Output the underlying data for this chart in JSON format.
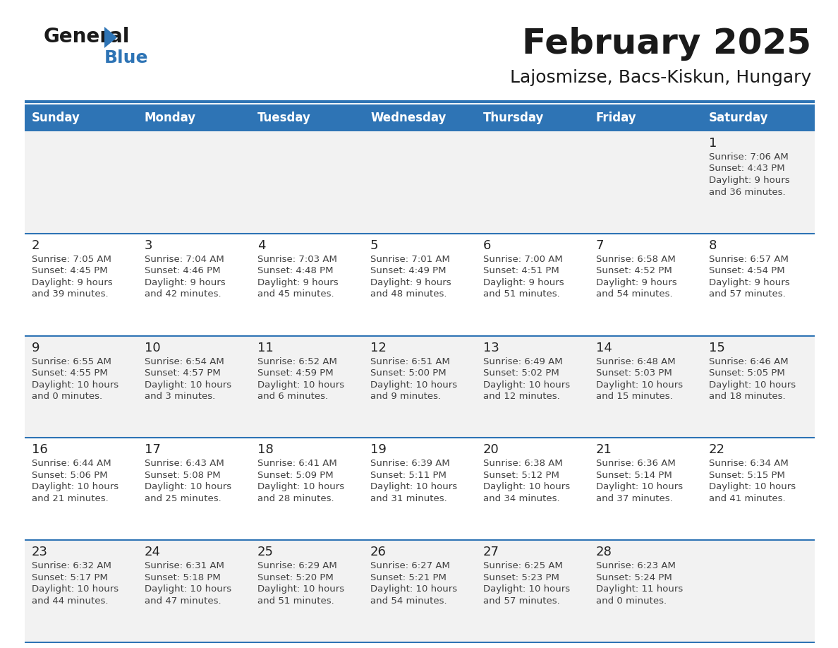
{
  "title": "February 2025",
  "subtitle": "Lajosmizse, Bacs-Kiskun, Hungary",
  "days_of_week": [
    "Sunday",
    "Monday",
    "Tuesday",
    "Wednesday",
    "Thursday",
    "Friday",
    "Saturday"
  ],
  "header_bg": "#2E74B5",
  "header_text_color": "#FFFFFF",
  "cell_bg_odd": "#F2F2F2",
  "cell_bg_even": "#FFFFFF",
  "divider_color": "#2E74B5",
  "text_color": "#404040",
  "day_num_color": "#222222",
  "logo_general_color": "#1a1a1a",
  "logo_blue_color": "#2E74B5",
  "logo_triangle_color": "#2E74B5",
  "calendar_data": [
    [
      null,
      null,
      null,
      null,
      null,
      null,
      {
        "day": "1",
        "sunrise": "Sunrise: 7:06 AM",
        "sunset": "Sunset: 4:43 PM",
        "dl1": "Daylight: 9 hours",
        "dl2": "and 36 minutes."
      }
    ],
    [
      {
        "day": "2",
        "sunrise": "Sunrise: 7:05 AM",
        "sunset": "Sunset: 4:45 PM",
        "dl1": "Daylight: 9 hours",
        "dl2": "and 39 minutes."
      },
      {
        "day": "3",
        "sunrise": "Sunrise: 7:04 AM",
        "sunset": "Sunset: 4:46 PM",
        "dl1": "Daylight: 9 hours",
        "dl2": "and 42 minutes."
      },
      {
        "day": "4",
        "sunrise": "Sunrise: 7:03 AM",
        "sunset": "Sunset: 4:48 PM",
        "dl1": "Daylight: 9 hours",
        "dl2": "and 45 minutes."
      },
      {
        "day": "5",
        "sunrise": "Sunrise: 7:01 AM",
        "sunset": "Sunset: 4:49 PM",
        "dl1": "Daylight: 9 hours",
        "dl2": "and 48 minutes."
      },
      {
        "day": "6",
        "sunrise": "Sunrise: 7:00 AM",
        "sunset": "Sunset: 4:51 PM",
        "dl1": "Daylight: 9 hours",
        "dl2": "and 51 minutes."
      },
      {
        "day": "7",
        "sunrise": "Sunrise: 6:58 AM",
        "sunset": "Sunset: 4:52 PM",
        "dl1": "Daylight: 9 hours",
        "dl2": "and 54 minutes."
      },
      {
        "day": "8",
        "sunrise": "Sunrise: 6:57 AM",
        "sunset": "Sunset: 4:54 PM",
        "dl1": "Daylight: 9 hours",
        "dl2": "and 57 minutes."
      }
    ],
    [
      {
        "day": "9",
        "sunrise": "Sunrise: 6:55 AM",
        "sunset": "Sunset: 4:55 PM",
        "dl1": "Daylight: 10 hours",
        "dl2": "and 0 minutes."
      },
      {
        "day": "10",
        "sunrise": "Sunrise: 6:54 AM",
        "sunset": "Sunset: 4:57 PM",
        "dl1": "Daylight: 10 hours",
        "dl2": "and 3 minutes."
      },
      {
        "day": "11",
        "sunrise": "Sunrise: 6:52 AM",
        "sunset": "Sunset: 4:59 PM",
        "dl1": "Daylight: 10 hours",
        "dl2": "and 6 minutes."
      },
      {
        "day": "12",
        "sunrise": "Sunrise: 6:51 AM",
        "sunset": "Sunset: 5:00 PM",
        "dl1": "Daylight: 10 hours",
        "dl2": "and 9 minutes."
      },
      {
        "day": "13",
        "sunrise": "Sunrise: 6:49 AM",
        "sunset": "Sunset: 5:02 PM",
        "dl1": "Daylight: 10 hours",
        "dl2": "and 12 minutes."
      },
      {
        "day": "14",
        "sunrise": "Sunrise: 6:48 AM",
        "sunset": "Sunset: 5:03 PM",
        "dl1": "Daylight: 10 hours",
        "dl2": "and 15 minutes."
      },
      {
        "day": "15",
        "sunrise": "Sunrise: 6:46 AM",
        "sunset": "Sunset: 5:05 PM",
        "dl1": "Daylight: 10 hours",
        "dl2": "and 18 minutes."
      }
    ],
    [
      {
        "day": "16",
        "sunrise": "Sunrise: 6:44 AM",
        "sunset": "Sunset: 5:06 PM",
        "dl1": "Daylight: 10 hours",
        "dl2": "and 21 minutes."
      },
      {
        "day": "17",
        "sunrise": "Sunrise: 6:43 AM",
        "sunset": "Sunset: 5:08 PM",
        "dl1": "Daylight: 10 hours",
        "dl2": "and 25 minutes."
      },
      {
        "day": "18",
        "sunrise": "Sunrise: 6:41 AM",
        "sunset": "Sunset: 5:09 PM",
        "dl1": "Daylight: 10 hours",
        "dl2": "and 28 minutes."
      },
      {
        "day": "19",
        "sunrise": "Sunrise: 6:39 AM",
        "sunset": "Sunset: 5:11 PM",
        "dl1": "Daylight: 10 hours",
        "dl2": "and 31 minutes."
      },
      {
        "day": "20",
        "sunrise": "Sunrise: 6:38 AM",
        "sunset": "Sunset: 5:12 PM",
        "dl1": "Daylight: 10 hours",
        "dl2": "and 34 minutes."
      },
      {
        "day": "21",
        "sunrise": "Sunrise: 6:36 AM",
        "sunset": "Sunset: 5:14 PM",
        "dl1": "Daylight: 10 hours",
        "dl2": "and 37 minutes."
      },
      {
        "day": "22",
        "sunrise": "Sunrise: 6:34 AM",
        "sunset": "Sunset: 5:15 PM",
        "dl1": "Daylight: 10 hours",
        "dl2": "and 41 minutes."
      }
    ],
    [
      {
        "day": "23",
        "sunrise": "Sunrise: 6:32 AM",
        "sunset": "Sunset: 5:17 PM",
        "dl1": "Daylight: 10 hours",
        "dl2": "and 44 minutes."
      },
      {
        "day": "24",
        "sunrise": "Sunrise: 6:31 AM",
        "sunset": "Sunset: 5:18 PM",
        "dl1": "Daylight: 10 hours",
        "dl2": "and 47 minutes."
      },
      {
        "day": "25",
        "sunrise": "Sunrise: 6:29 AM",
        "sunset": "Sunset: 5:20 PM",
        "dl1": "Daylight: 10 hours",
        "dl2": "and 51 minutes."
      },
      {
        "day": "26",
        "sunrise": "Sunrise: 6:27 AM",
        "sunset": "Sunset: 5:21 PM",
        "dl1": "Daylight: 10 hours",
        "dl2": "and 54 minutes."
      },
      {
        "day": "27",
        "sunrise": "Sunrise: 6:25 AM",
        "sunset": "Sunset: 5:23 PM",
        "dl1": "Daylight: 10 hours",
        "dl2": "and 57 minutes."
      },
      {
        "day": "28",
        "sunrise": "Sunrise: 6:23 AM",
        "sunset": "Sunset: 5:24 PM",
        "dl1": "Daylight: 11 hours",
        "dl2": "and 0 minutes."
      },
      null
    ]
  ]
}
